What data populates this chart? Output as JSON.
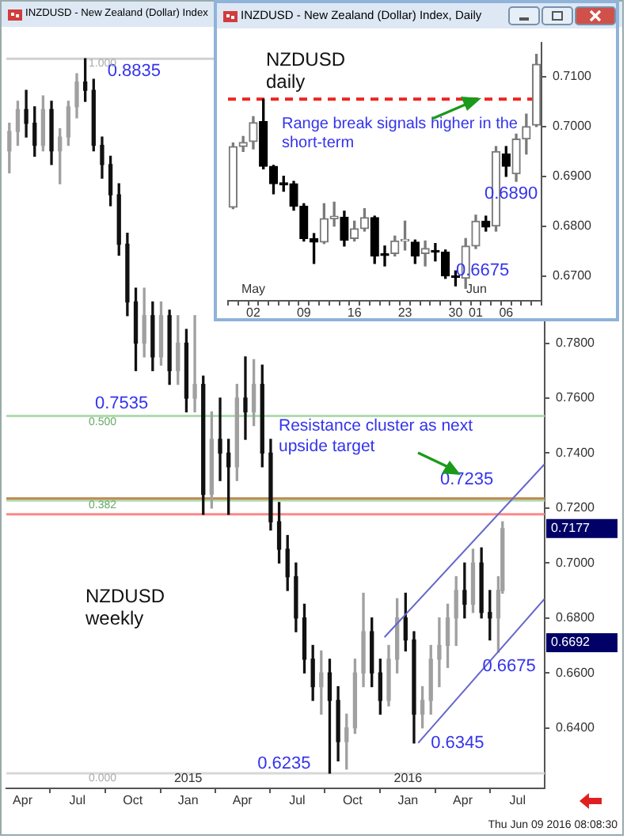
{
  "chart_data": [
    {
      "type": "candlestick",
      "title": "INZDUSD - New Zealand (Dollar) Index",
      "marker": "none",
      "x": [
        "2014-03-10",
        "2014-03-24",
        "2014-04-07",
        "2014-04-21",
        "2014-05-05",
        "2014-05-19",
        "2014-06-02",
        "2014-06-16",
        "2014-06-30",
        "2014-07-14",
        "2014-07-28",
        "2014-08-11",
        "2014-08-25",
        "2014-09-08",
        "2014-09-22",
        "2014-10-06",
        "2014-10-20",
        "2014-11-03",
        "2014-11-17",
        "2014-12-01",
        "2014-12-15",
        "2014-12-29",
        "2015-01-12",
        "2015-01-26",
        "2015-02-09",
        "2015-02-23",
        "2015-03-09",
        "2015-03-23",
        "2015-04-06",
        "2015-04-20",
        "2015-05-04",
        "2015-05-18",
        "2015-06-01",
        "2015-06-15",
        "2015-06-29",
        "2015-07-13",
        "2015-07-27",
        "2015-08-10",
        "2015-08-24",
        "2015-09-07",
        "2015-09-21",
        "2015-10-05",
        "2015-10-19",
        "2015-11-02",
        "2015-11-16",
        "2015-11-30",
        "2015-12-14",
        "2015-12-28",
        "2016-01-11",
        "2016-01-25",
        "2016-02-08",
        "2016-02-22",
        "2016-03-07",
        "2016-03-21",
        "2016-04-04",
        "2016-04-18",
        "2016-05-02",
        "2016-05-16",
        "2016-05-30",
        "2016-06-06"
      ],
      "ohlc": [
        [
          0.85,
          0.86,
          0.842,
          0.857
        ],
        [
          0.857,
          0.868,
          0.852,
          0.865
        ],
        [
          0.865,
          0.872,
          0.855,
          0.86
        ],
        [
          0.86,
          0.866,
          0.848,
          0.852
        ],
        [
          0.852,
          0.87,
          0.85,
          0.865
        ],
        [
          0.865,
          0.868,
          0.845,
          0.85
        ],
        [
          0.85,
          0.858,
          0.838,
          0.855
        ],
        [
          0.855,
          0.868,
          0.852,
          0.866
        ],
        [
          0.866,
          0.878,
          0.862,
          0.875
        ],
        [
          0.875,
          0.8835,
          0.868,
          0.872
        ],
        [
          0.872,
          0.876,
          0.85,
          0.852
        ],
        [
          0.852,
          0.855,
          0.84,
          0.845
        ],
        [
          0.845,
          0.848,
          0.83,
          0.834
        ],
        [
          0.834,
          0.838,
          0.812,
          0.816
        ],
        [
          0.816,
          0.82,
          0.79,
          0.795
        ],
        [
          0.795,
          0.8,
          0.77,
          0.78
        ],
        [
          0.78,
          0.8,
          0.775,
          0.79
        ],
        [
          0.79,
          0.795,
          0.77,
          0.775
        ],
        [
          0.775,
          0.795,
          0.772,
          0.79
        ],
        [
          0.79,
          0.792,
          0.765,
          0.77
        ],
        [
          0.77,
          0.79,
          0.765,
          0.78
        ],
        [
          0.78,
          0.785,
          0.755,
          0.76
        ],
        [
          0.76,
          0.79,
          0.755,
          0.765
        ],
        [
          0.765,
          0.768,
          0.7177,
          0.725
        ],
        [
          0.725,
          0.755,
          0.72,
          0.745
        ],
        [
          0.745,
          0.76,
          0.73,
          0.74
        ],
        [
          0.74,
          0.745,
          0.7177,
          0.735
        ],
        [
          0.735,
          0.765,
          0.73,
          0.76
        ],
        [
          0.76,
          0.775,
          0.745,
          0.755
        ],
        [
          0.755,
          0.774,
          0.75,
          0.765
        ],
        [
          0.765,
          0.772,
          0.735,
          0.74
        ],
        [
          0.74,
          0.745,
          0.712,
          0.715
        ],
        [
          0.715,
          0.722,
          0.7,
          0.705
        ],
        [
          0.705,
          0.71,
          0.69,
          0.695
        ],
        [
          0.695,
          0.7,
          0.675,
          0.68
        ],
        [
          0.68,
          0.685,
          0.66,
          0.665
        ],
        [
          0.665,
          0.67,
          0.65,
          0.655
        ],
        [
          0.655,
          0.668,
          0.645,
          0.66
        ],
        [
          0.66,
          0.665,
          0.6235,
          0.65
        ],
        [
          0.65,
          0.655,
          0.628,
          0.635
        ],
        [
          0.635,
          0.645,
          0.625,
          0.64
        ],
        [
          0.64,
          0.665,
          0.638,
          0.66
        ],
        [
          0.66,
          0.689,
          0.655,
          0.675
        ],
        [
          0.675,
          0.68,
          0.655,
          0.66
        ],
        [
          0.66,
          0.665,
          0.645,
          0.65
        ],
        [
          0.65,
          0.67,
          0.648,
          0.665
        ],
        [
          0.665,
          0.687,
          0.66,
          0.68
        ],
        [
          0.68,
          0.689,
          0.668,
          0.672
        ],
        [
          0.672,
          0.675,
          0.6345,
          0.645
        ],
        [
          0.645,
          0.655,
          0.64,
          0.65
        ],
        [
          0.65,
          0.67,
          0.645,
          0.665
        ],
        [
          0.665,
          0.68,
          0.655,
          0.67
        ],
        [
          0.67,
          0.685,
          0.662,
          0.68
        ],
        [
          0.68,
          0.695,
          0.67,
          0.69
        ],
        [
          0.69,
          0.7,
          0.68,
          0.685
        ],
        [
          0.685,
          0.705,
          0.682,
          0.7
        ],
        [
          0.7,
          0.7055,
          0.68,
          0.682
        ],
        [
          0.682,
          0.69,
          0.672,
          0.68
        ],
        [
          0.68,
          0.695,
          0.6675,
          0.69
        ],
        [
          0.69,
          0.715,
          0.689,
          0.7125
        ]
      ],
      "series": [
        {
          "type": "line",
          "color": "#6666cc",
          "x": [
            "2015-11-23",
            "2016-08-15"
          ],
          "values": [
            0.673,
            0.736
          ]
        },
        {
          "type": "line",
          "color": "#6666cc",
          "x": [
            "2016-01-18",
            "2016-08-15"
          ],
          "values": [
            0.6345,
            0.687
          ]
        }
      ],
      "xlim": [
        "2014-03-05",
        "2016-08-15"
      ],
      "xticks": [
        {
          "value": "2014-04",
          "label": "Apr"
        },
        {
          "value": "2014-07",
          "label": "Jul"
        },
        {
          "value": "2014-10",
          "label": "Oct"
        },
        {
          "value": "2015-01",
          "label": "Jan"
        },
        {
          "value": "2015-04",
          "label": "Apr"
        },
        {
          "value": "2015-07",
          "label": "Jul"
        },
        {
          "value": "2015-10",
          "label": "Oct"
        },
        {
          "value": "2016-01",
          "label": "Jan"
        },
        {
          "value": "2016-04",
          "label": "Apr"
        },
        {
          "value": "2016-07",
          "label": "Jul"
        }
      ],
      "ylim": [
        0.618,
        0.89
      ],
      "yticks": [
        {
          "value": 0.64,
          "label": "0.6400"
        },
        {
          "value": 0.66,
          "label": "0.6600"
        },
        {
          "value": 0.68,
          "label": "0.6800"
        },
        {
          "value": 0.7,
          "label": "0.7000"
        },
        {
          "value": 0.72,
          "label": "0.7200"
        },
        {
          "value": 0.74,
          "label": "0.7400"
        },
        {
          "value": 0.76,
          "label": "0.7600"
        },
        {
          "value": 0.78,
          "label": "0.7800"
        }
      ],
      "ref_lines": [
        {
          "axis": "y",
          "value": 0.8835,
          "color": "#d0d0d0"
        },
        {
          "axis": "y",
          "value": 0.7535,
          "color": "#b0dcb0"
        },
        {
          "axis": "y",
          "value": 0.7228,
          "color": "#b0dcb0"
        },
        {
          "axis": "y",
          "value": 0.6235,
          "color": "#d8d8d8"
        },
        {
          "axis": "y",
          "value": 0.7177,
          "label": "0.7177",
          "color": "#ff8888"
        },
        {
          "axis": "y",
          "value": 0.7235,
          "color": "#c08850"
        }
      ],
      "annotations": [
        "NZDUSD weekly",
        "Resistance cluster as next upside target",
        "Thu Jun 09 2016 08:08:30",
        {
          "text": "0.8835",
          "x": "2014-07-14",
          "y": 0.8835
        },
        {
          "text": "0.7535",
          "y": 0.7535
        },
        {
          "text": "0.6235",
          "x": "2015-08-24",
          "y": 0.6235
        },
        {
          "text": "0.6345",
          "x": "2016-01-18",
          "y": 0.6345
        },
        {
          "text": "0.6675",
          "x": "2016-05-30",
          "y": 0.6675
        },
        {
          "text": "0.7235",
          "y": 0.7235
        },
        {
          "text": "2015",
          "x": "2015-01"
        },
        {
          "text": "2016",
          "x": "2016-01"
        },
        "0.6692",
        {
          "text": "1.000",
          "y": 0.8835
        },
        {
          "text": "0.500",
          "y": 0.7535
        },
        {
          "text": "0.382",
          "y": 0.7228
        },
        {
          "text": "0.000",
          "y": 0.6235
        }
      ]
    },
    {
      "type": "candlestick",
      "title": "INZDUSD - New Zealand (Dollar) Index, Daily",
      "categories": [
        null,
        null,
        "02",
        null,
        null,
        null,
        null,
        "09",
        null,
        null,
        null,
        null,
        "16",
        null,
        null,
        null,
        null,
        "23",
        null,
        null,
        null,
        null,
        "30",
        null,
        "01",
        null,
        null,
        "06",
        null,
        null,
        null
      ],
      "ohlc": [
        [
          0.6838,
          0.6967,
          0.6835,
          0.696
        ],
        [
          0.696,
          0.698,
          0.695,
          0.6968
        ],
        [
          0.697,
          0.702,
          0.6955,
          0.7008
        ],
        [
          0.701,
          0.7055,
          0.6915,
          0.692
        ],
        [
          0.692,
          0.6922,
          0.6865,
          0.6885
        ],
        [
          0.6887,
          0.69,
          0.687,
          0.6883
        ],
        [
          0.6885,
          0.689,
          0.6832,
          0.684
        ],
        [
          0.684,
          0.6845,
          0.677,
          0.6775
        ],
        [
          0.6775,
          0.6785,
          0.6725,
          0.6768
        ],
        [
          0.6768,
          0.6845,
          0.6765,
          0.6815
        ],
        [
          0.6815,
          0.6848,
          0.68,
          0.682
        ],
        [
          0.6818,
          0.683,
          0.676,
          0.6772
        ],
        [
          0.6775,
          0.681,
          0.677,
          0.6795
        ],
        [
          0.6795,
          0.6835,
          0.679,
          0.6817
        ],
        [
          0.6817,
          0.682,
          0.6725,
          0.674
        ],
        [
          0.6743,
          0.676,
          0.672,
          0.6741
        ],
        [
          0.6745,
          0.678,
          0.674,
          0.677
        ],
        [
          0.677,
          0.681,
          0.6752,
          0.6771
        ],
        [
          0.6768,
          0.6772,
          0.6725,
          0.674
        ],
        [
          0.6745,
          0.677,
          0.672,
          0.6755
        ],
        [
          0.675,
          0.6765,
          0.673,
          0.6748
        ],
        [
          0.6748,
          0.6752,
          0.6695,
          0.67
        ],
        [
          0.67,
          0.671,
          0.668,
          0.6697
        ],
        [
          0.6695,
          0.6775,
          0.6675,
          0.676
        ],
        [
          0.676,
          0.6822,
          0.6755,
          0.681
        ],
        [
          0.681,
          0.682,
          0.679,
          0.6798
        ],
        [
          0.68,
          0.696,
          0.679,
          0.695
        ],
        [
          0.6945,
          0.696,
          0.69,
          0.692
        ],
        [
          0.6905,
          0.6985,
          0.689,
          0.6975
        ],
        [
          0.6975,
          0.7025,
          0.6945,
          0.7
        ],
        [
          0.7003,
          0.7145,
          0.7,
          0.7125
        ]
      ],
      "ylim": [
        0.665,
        0.7169
      ],
      "yticks": [
        {
          "value": 0.67,
          "label": "0.6700"
        },
        {
          "value": 0.68,
          "label": "0.6800"
        },
        {
          "value": 0.69,
          "label": "0.6900"
        },
        {
          "value": 0.7,
          "label": "0.7000"
        },
        {
          "value": 0.71,
          "label": "0.7100"
        }
      ],
      "ref_lines": [
        {
          "axis": "y",
          "value": 0.7055,
          "color": "#ee2222",
          "line_style": "dashed"
        }
      ],
      "annotations": [
        "NZDUSD daily",
        "Range break signals higher in the short-term",
        {
          "text": "0.6890",
          "y": 0.689
        },
        "0.6675",
        "May",
        "Jun"
      ]
    }
  ]
}
